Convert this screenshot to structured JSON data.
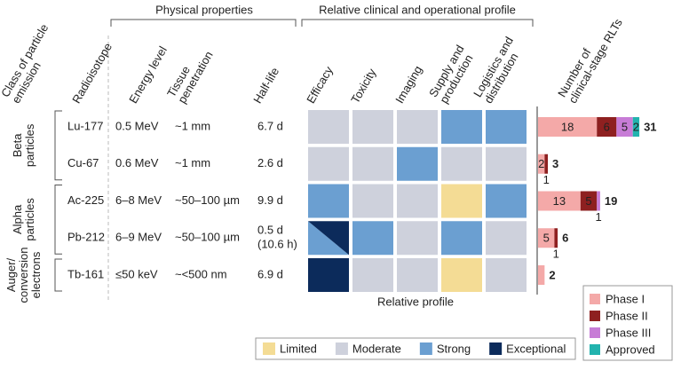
{
  "header": {
    "groups": [
      "Physical properties",
      "Relative clinical and operational profile"
    ],
    "columns": [
      [
        "Class of particle",
        "emission"
      ],
      [
        "Radioisotope"
      ],
      [
        "Energy level"
      ],
      [
        "Tissue",
        "penetration"
      ],
      [
        "Half-life"
      ],
      [
        "Efficacy"
      ],
      [
        "Toxicity"
      ],
      [
        "Imaging"
      ],
      [
        "Supply and",
        "production"
      ],
      [
        "Logistics and",
        "distribution"
      ]
    ]
  },
  "classes": [
    {
      "lines": [
        "Beta",
        "particles"
      ],
      "isotopes": [
        {
          "radioisotope": "Lu-177",
          "energy": "0.5 MeV",
          "penetration": "~1 mm",
          "half_life": [
            "6.7 d"
          ],
          "profile": [
            "Moderate",
            "Moderate",
            "Moderate",
            "Strong",
            "Strong"
          ]
        },
        {
          "radioisotope": "Cu-67",
          "energy": "0.6 MeV",
          "penetration": "~1 mm",
          "half_life": [
            "2.6 d"
          ],
          "profile": [
            "Moderate",
            "Moderate",
            "Strong",
            "Moderate",
            "Moderate"
          ]
        }
      ]
    },
    {
      "lines": [
        "Alpha",
        "particles"
      ],
      "isotopes": [
        {
          "radioisotope": "Ac-225",
          "energy": "6–8 MeV",
          "penetration": "~50–100 µm",
          "half_life": [
            "9.9 d"
          ],
          "profile": [
            "Strong",
            "Moderate",
            "Moderate",
            "Limited",
            "Strong"
          ]
        },
        {
          "radioisotope": "Pb-212",
          "energy": "6–9 MeV",
          "penetration": "~50–100 µm",
          "half_life": [
            "0.5 d",
            "(10.6 h)"
          ],
          "profile": [
            [
              "Strong",
              "Exceptional"
            ],
            "Strong",
            "Moderate",
            "Strong",
            "Moderate"
          ]
        }
      ]
    },
    {
      "lines": [
        "Auger/",
        "conversion",
        "electrons"
      ],
      "isotopes": [
        {
          "radioisotope": "Tb-161",
          "energy": "≤50 keV",
          "penetration": "~<500 nm",
          "half_life": [
            "6.9 d"
          ],
          "profile": [
            "Exceptional",
            "Moderate",
            "Moderate",
            "Limited",
            "Moderate"
          ]
        }
      ]
    }
  ],
  "profile_label": "Relative profile",
  "legend": [
    {
      "label": "Limited",
      "color": "#f4dc95"
    },
    {
      "label": "Moderate",
      "color": "#ced1dc"
    },
    {
      "label": "Strong",
      "color": "#6b9fd1"
    },
    {
      "label": "Exceptional",
      "color": "#0c2b5b"
    }
  ],
  "chart_data": {
    "type": "stacked-bar",
    "title": [
      "Number of",
      "clinical-stage RLTs"
    ],
    "series": [
      {
        "name": "Phase I",
        "color": "#f4a9a8",
        "values": [
          18,
          2,
          13,
          5,
          2
        ]
      },
      {
        "name": "Phase II",
        "color": "#8e2020",
        "values": [
          6,
          1,
          5,
          1,
          0
        ]
      },
      {
        "name": "Phase III",
        "color": "#c77cd6",
        "values": [
          5,
          0,
          1,
          0,
          0
        ]
      },
      {
        "name": "Approved",
        "color": "#22b3ae",
        "values": [
          2,
          0,
          0,
          0,
          0
        ]
      }
    ],
    "totals": [
      31,
      3,
      19,
      6,
      2
    ]
  }
}
